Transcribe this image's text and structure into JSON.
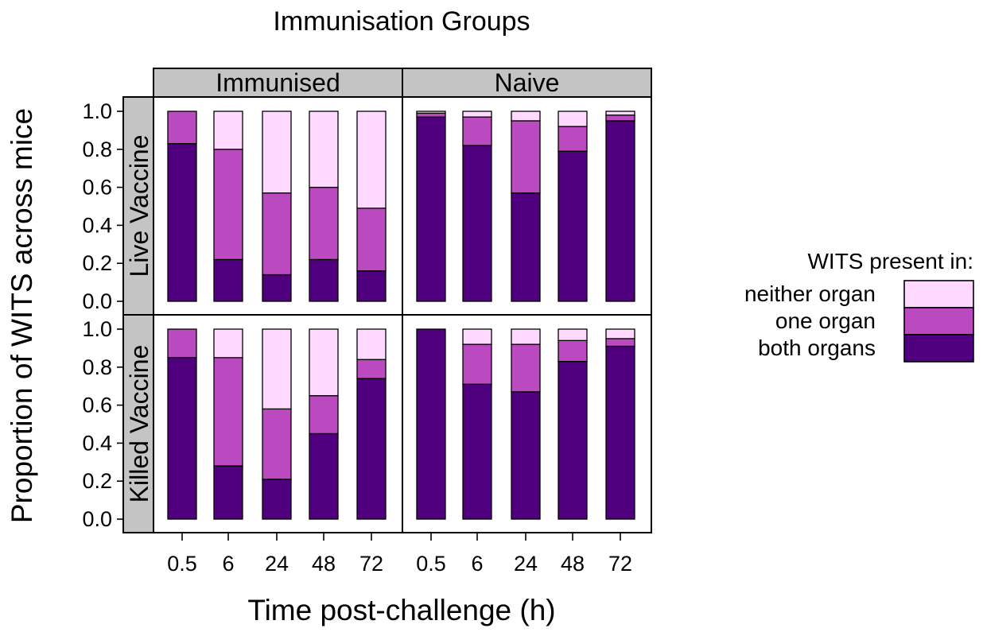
{
  "chart_data": {
    "type": "bar",
    "stacked": true,
    "title": "Immunisation Groups",
    "xlabel": "Time post-challenge (h)",
    "ylabel": "Proportion of WITS across mice",
    "ylim": [
      0,
      1
    ],
    "y_ticks": [
      "0.0",
      "0.2",
      "0.4",
      "0.6",
      "0.8",
      "1.0"
    ],
    "categories": [
      "0.5",
      "6",
      "24",
      "48",
      "72"
    ],
    "columns": [
      "Immunised",
      "Naive"
    ],
    "rows": [
      "Live Vaccine",
      "Killed Vaccine"
    ],
    "legend": {
      "title": "WITS present in:",
      "position": "right",
      "entries": [
        "neither organ",
        "one organ",
        "both organs"
      ]
    },
    "colors": {
      "neither organ": "#ffd9ff",
      "one organ": "#bb4ac0",
      "both organs": "#50007e"
    },
    "series_order": [
      "both organs",
      "one organ",
      "neither organ"
    ],
    "panels": [
      {
        "row": "Live Vaccine",
        "column": "Immunised",
        "series": [
          {
            "name": "both organs",
            "values": [
              0.83,
              0.22,
              0.14,
              0.22,
              0.16
            ]
          },
          {
            "name": "one organ",
            "values": [
              0.17,
              0.58,
              0.43,
              0.38,
              0.33
            ]
          },
          {
            "name": "neither organ",
            "values": [
              0.0,
              0.2,
              0.43,
              0.4,
              0.51
            ]
          }
        ]
      },
      {
        "row": "Live Vaccine",
        "column": "Naive",
        "series": [
          {
            "name": "both organs",
            "values": [
              0.97,
              0.82,
              0.57,
              0.79,
              0.95
            ]
          },
          {
            "name": "one organ",
            "values": [
              0.02,
              0.15,
              0.38,
              0.13,
              0.03
            ]
          },
          {
            "name": "neither organ",
            "values": [
              0.01,
              0.03,
              0.05,
              0.08,
              0.02
            ]
          }
        ]
      },
      {
        "row": "Killed Vaccine",
        "column": "Immunised",
        "series": [
          {
            "name": "both organs",
            "values": [
              0.85,
              0.28,
              0.21,
              0.45,
              0.74
            ]
          },
          {
            "name": "one organ",
            "values": [
              0.15,
              0.57,
              0.37,
              0.2,
              0.1
            ]
          },
          {
            "name": "neither organ",
            "values": [
              0.0,
              0.15,
              0.42,
              0.35,
              0.16
            ]
          }
        ]
      },
      {
        "row": "Killed Vaccine",
        "column": "Naive",
        "series": [
          {
            "name": "both organs",
            "values": [
              1.0,
              0.71,
              0.67,
              0.83,
              0.91
            ]
          },
          {
            "name": "one organ",
            "values": [
              0.0,
              0.21,
              0.25,
              0.11,
              0.04
            ]
          },
          {
            "name": "neither organ",
            "values": [
              0.0,
              0.08,
              0.08,
              0.06,
              0.05
            ]
          }
        ]
      }
    ]
  }
}
